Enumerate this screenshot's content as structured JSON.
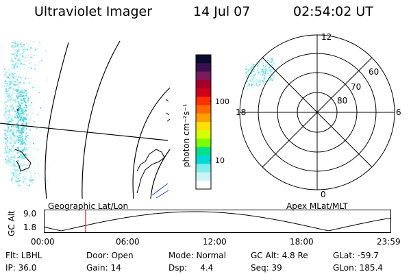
{
  "header": {
    "instrument": "Ultraviolet Imager",
    "date": "14 Jul 07",
    "time": "02:54:02 UT"
  },
  "colorbar": {
    "unit_label": "photon cm⁻²s⁻¹",
    "ticks": [
      "100",
      "10"
    ],
    "colors": [
      "#0b0b2e",
      "#3a1050",
      "#7a1b5a",
      "#a0002a",
      "#d0001a",
      "#ff3000",
      "#ff6a00",
      "#ffa000",
      "#ffe000",
      "#d6ff00",
      "#7cff00",
      "#00e08a",
      "#00d8d8",
      "#80ecec",
      "#c8f4f4",
      "#ffffff"
    ]
  },
  "geo_panel": {
    "label": "Geographic Lat/Lon"
  },
  "polar_panel": {
    "label": "Apex MLat/MLT",
    "mlt_labels": {
      "top": "12",
      "left": "18",
      "right": "6",
      "bottom": "0"
    },
    "lat_labels": [
      "60",
      "70",
      "80"
    ]
  },
  "altitude_strip": {
    "ylabel": "GC Alt",
    "ymax": "9.0",
    "ymin": "1.8",
    "time_ticks": [
      "00:00",
      "06:00",
      "12:00",
      "18:00",
      "23:59"
    ],
    "current_time_marker_hours": 2.9
  },
  "info": {
    "flt": "Flt: LBHL",
    "ip": "IP: 36.0",
    "door": "Door: Open",
    "gain": "Gain: 14",
    "mode": "Mode: Normal",
    "dsp": "Dsp:     4.4",
    "gc_alt": "GC Alt: 4.8 Re",
    "seq": "Seq: 39",
    "glat": "GLat: -59.7",
    "glon": "GLon: 185.4"
  }
}
